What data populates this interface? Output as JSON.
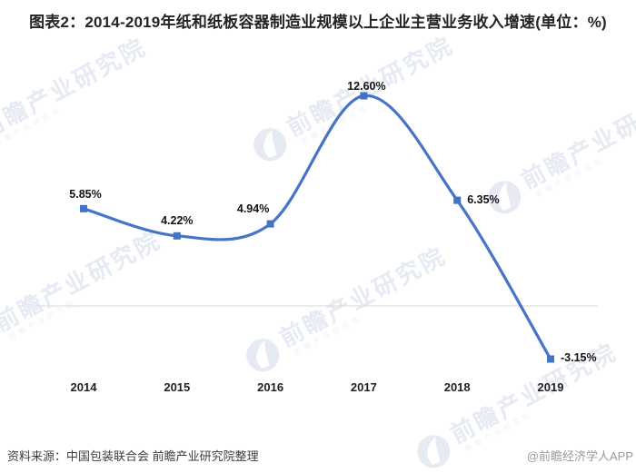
{
  "header": {
    "title": "图表2：2014-2019年纸和纸板容器制造业规模以上企业主营业务收入增速(单位：%)"
  },
  "chart_data": {
    "type": "line",
    "title": "图表2：2014-2019年纸和纸板容器制造业规模以上企业主营业务收入增速(单位：%)",
    "unit": "%",
    "categories": [
      "2014",
      "2015",
      "2016",
      "2017",
      "2018",
      "2019"
    ],
    "values": [
      5.85,
      4.22,
      4.94,
      12.6,
      6.35,
      -3.15
    ],
    "labels": [
      "5.85%",
      "4.22%",
      "4.94%",
      "12.60%",
      "6.35%",
      "-3.15%"
    ],
    "series_name": "主营业务收入增速",
    "xlabel": "",
    "ylabel": "",
    "ylim": [
      -3.15,
      12.6
    ],
    "legend": "none",
    "grid": "zero line only",
    "line_color": "#4674C6",
    "marker_color": "#4472C4",
    "marker_shape": "square",
    "zero_line_color": "#D9D9D9",
    "label_color": "#121212"
  },
  "watermark": {
    "text": "前瞻产业研究院",
    "logo": "qianzhan-circle-logo",
    "color": "#E6EAF3"
  },
  "footer": {
    "source": "资料来源：中国包装联合会 前瞻产业研究院整理",
    "credit": "@前瞻经济学人APP"
  }
}
